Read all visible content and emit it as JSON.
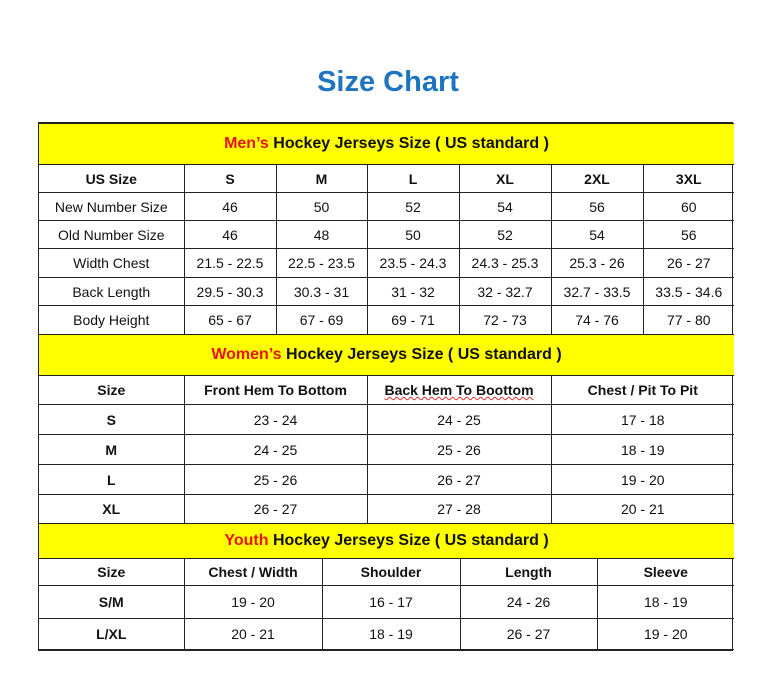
{
  "title": "Size Chart",
  "colors": {
    "title": "#1f74c1",
    "section_bg": "#ffff00",
    "highlight": "#e8140c"
  },
  "sections": [
    {
      "id": "men",
      "highlight": "Men’s",
      "heading": " Hockey Jerseys Size ( US standard )",
      "columns": [
        "US Size",
        "S",
        "M",
        "L",
        "XL",
        "2XL",
        "3XL"
      ],
      "rows": [
        [
          "New Number Size",
          "46",
          "50",
          "52",
          "54",
          "56",
          "60"
        ],
        [
          "Old Number Size",
          "46",
          "48",
          "50",
          "52",
          "54",
          "56"
        ],
        [
          "Width Chest",
          "21.5 - 22.5",
          "22.5 - 23.5",
          "23.5 - 24.3",
          "24.3 - 25.3",
          "25.3 - 26",
          "26 - 27"
        ],
        [
          "Back Length",
          "29.5 - 30.3",
          "30.3 - 31",
          "31 - 32",
          "32 - 32.7",
          "32.7 - 33.5",
          "33.5 - 34.6"
        ],
        [
          "Body Height",
          "65 - 67",
          "67 - 69",
          "69 - 71",
          "72 - 73",
          "74 - 76",
          "77 - 80"
        ]
      ]
    },
    {
      "id": "women",
      "highlight": "Women’s",
      "heading": " Hockey Jerseys Size ( US standard )",
      "columns": [
        "Size",
        "Front Hem To Bottom",
        "Back Hem To Boottom",
        "Chest / Pit To Pit"
      ],
      "rows": [
        [
          "S",
          "23 - 24",
          "24 - 25",
          "17 - 18"
        ],
        [
          "M",
          "24 - 25",
          "25 - 26",
          "18 - 19"
        ],
        [
          "L",
          "25 - 26",
          "26 - 27",
          "19 - 20"
        ],
        [
          "XL",
          "26 - 27",
          "27 - 28",
          "20 - 21"
        ]
      ]
    },
    {
      "id": "youth",
      "highlight": "Youth",
      "heading": " Hockey Jerseys Size ( US standard )",
      "columns": [
        "Size",
        "Chest / Width",
        "Shoulder",
        "Length",
        "Sleeve"
      ],
      "rows": [
        [
          "S/M",
          "19 - 20",
          "16 - 17",
          "24 - 26",
          "18 - 19"
        ],
        [
          "L/XL",
          "20 - 21",
          "18 - 19",
          "26 - 27",
          "19 - 20"
        ]
      ]
    }
  ]
}
